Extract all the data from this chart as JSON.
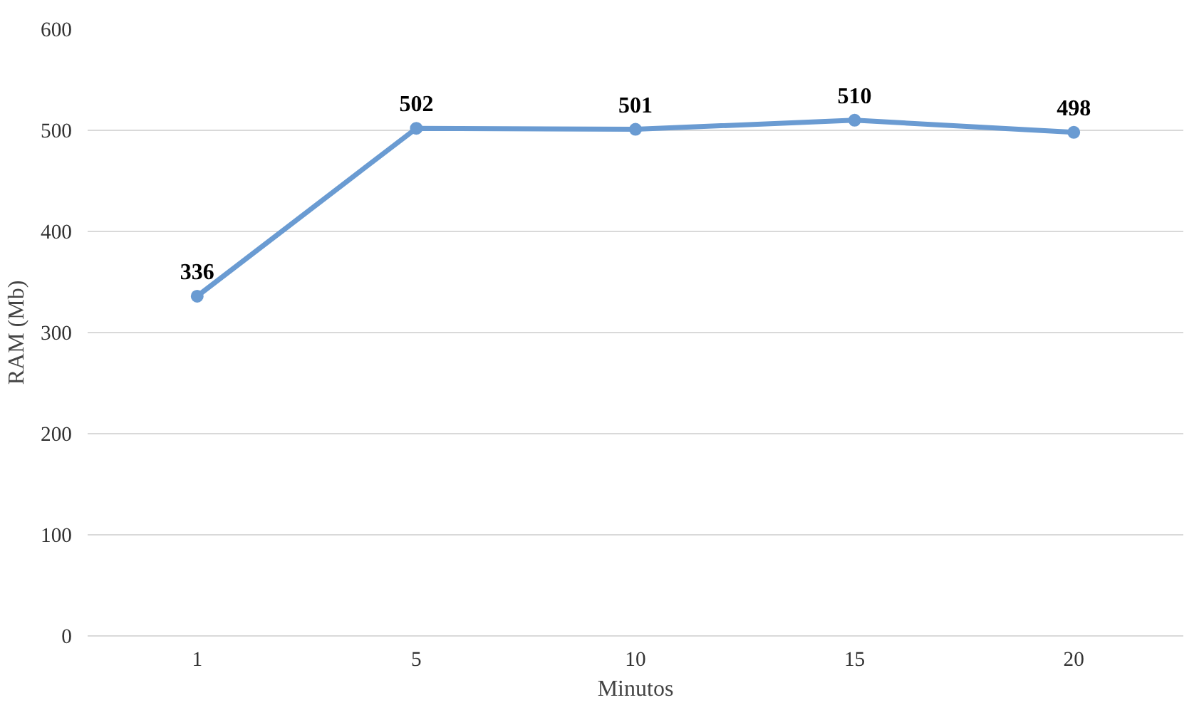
{
  "chart_data": {
    "type": "line",
    "xlabel": "Minutos",
    "ylabel": "RAM (Mb)",
    "categories": [
      "1",
      "5",
      "10",
      "15",
      "20"
    ],
    "series": [
      {
        "color": "#6a9bd2",
        "values": [
          336,
          502,
          501,
          510,
          498
        ]
      }
    ],
    "ylim": [
      0,
      600
    ],
    "yticks": [
      0,
      100,
      200,
      300,
      400,
      500,
      600
    ],
    "grid": "y",
    "marker": "circle",
    "line_style": "solid",
    "data_labels": true
  }
}
